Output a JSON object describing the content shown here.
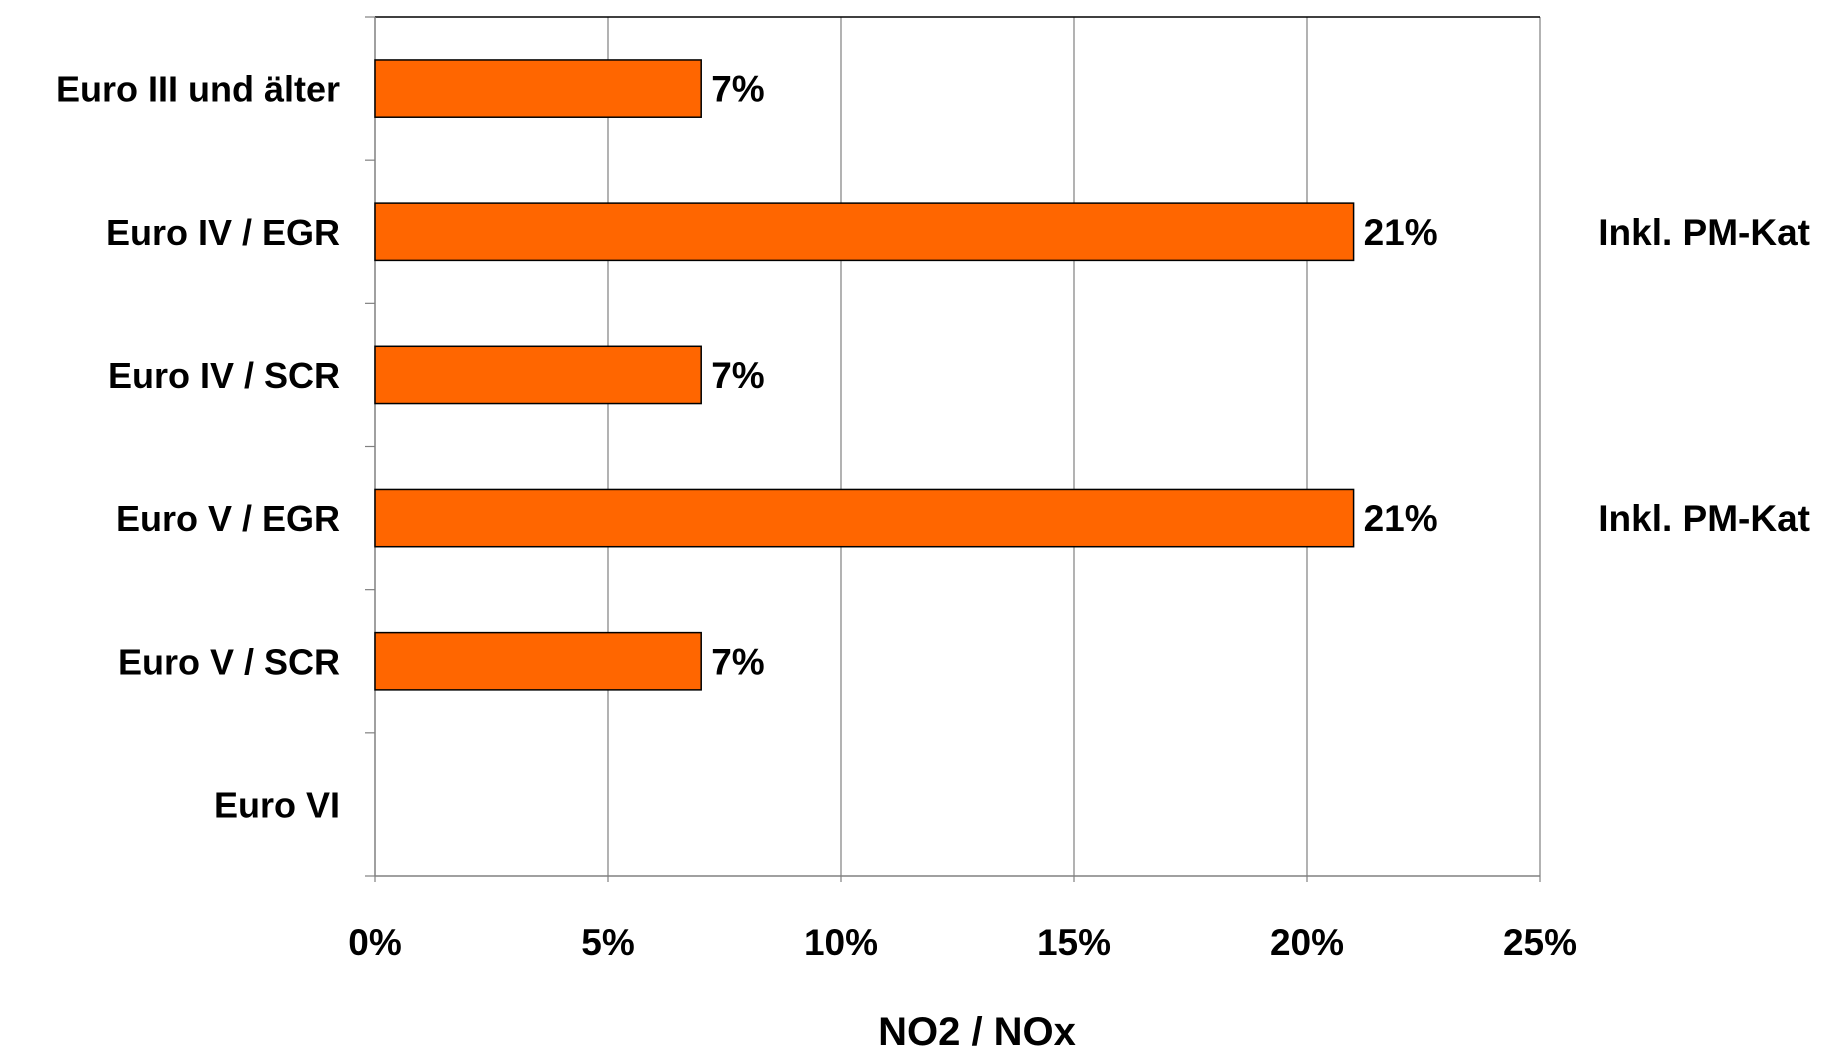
{
  "chart_data": {
    "type": "bar",
    "orientation": "horizontal",
    "categories": [
      "Euro III und älter",
      "Euro IV / EGR",
      "Euro IV / SCR",
      "Euro V / EGR",
      "Euro V / SCR",
      "Euro VI"
    ],
    "values": [
      7,
      21,
      7,
      21,
      7,
      null
    ],
    "data_labels": [
      "7%",
      "21%",
      "7%",
      "21%",
      "7%",
      ""
    ],
    "annotations": [
      "",
      "Inkl. PM-Kat",
      "",
      "Inkl. PM-Kat",
      "",
      ""
    ],
    "x_ticks": [
      0,
      5,
      10,
      15,
      20,
      25
    ],
    "x_tick_labels": [
      "0%",
      "5%",
      "10%",
      "15%",
      "20%",
      "25%"
    ],
    "xlim": [
      0,
      25
    ],
    "xlabel": "NO2 / NOx",
    "ylabel": "",
    "title": "",
    "grid": "vertical",
    "legend": "none",
    "colors": {
      "bar": "#ff6600",
      "bar_edge": "#000000",
      "grid": "#808080",
      "axis": "#808080"
    }
  }
}
